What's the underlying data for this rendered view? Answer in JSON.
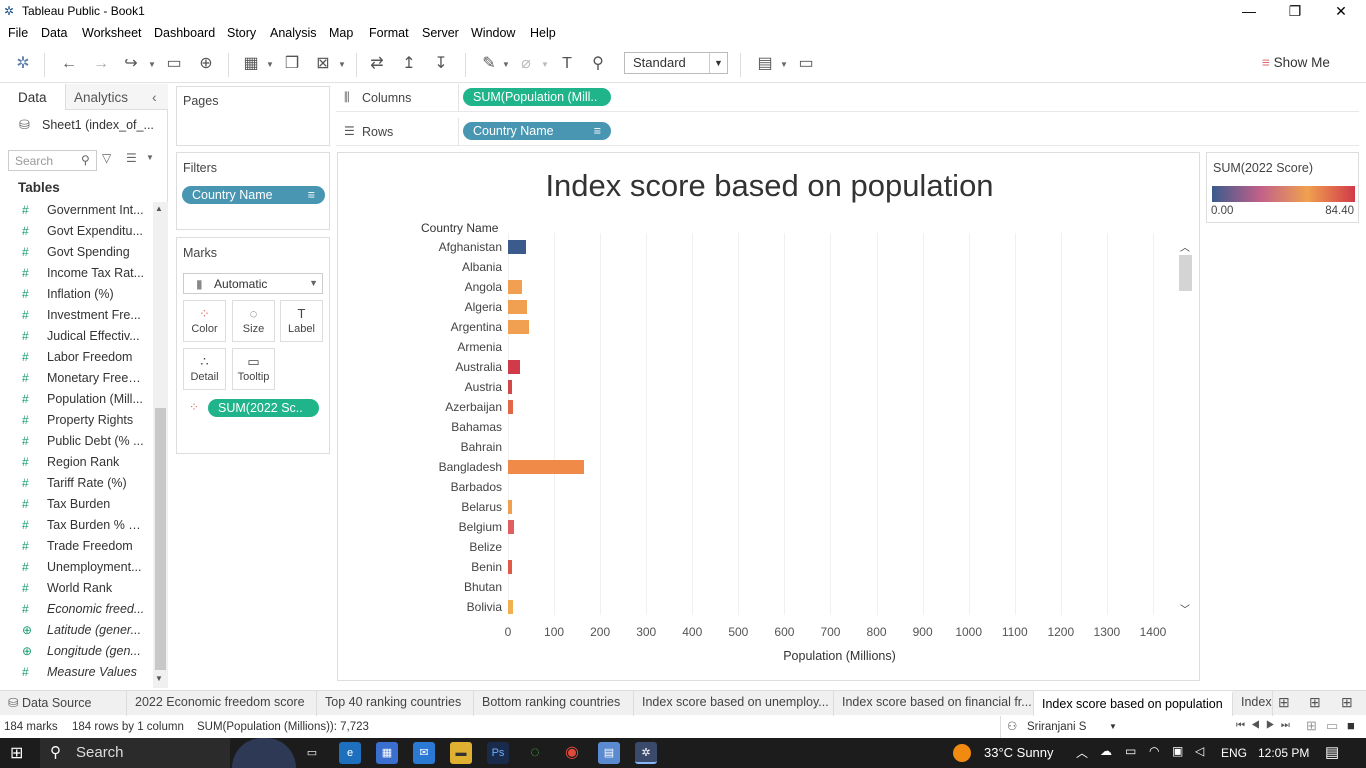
{
  "window": {
    "title": "Tableau Public - Book1"
  },
  "menu": [
    "File",
    "Data",
    "Worksheet",
    "Dashboard",
    "Story",
    "Analysis",
    "Map",
    "Format",
    "Server",
    "Window",
    "Help"
  ],
  "toolbar": {
    "fit": "Standard",
    "show_me": "Show Me"
  },
  "left": {
    "tabs": [
      "Data",
      "Analytics"
    ],
    "datasource": "Sheet1 (index_of_...",
    "search_placeholder": "Search",
    "tables_label": "Tables",
    "fields": [
      {
        "name": "Government Int...",
        "icon": "#"
      },
      {
        "name": "Govt Expenditu...",
        "icon": "#"
      },
      {
        "name": "Govt Spending",
        "icon": "#"
      },
      {
        "name": "Income Tax Rat...",
        "icon": "#"
      },
      {
        "name": "Inflation (%)",
        "icon": "#"
      },
      {
        "name": "Investment Fre...",
        "icon": "#"
      },
      {
        "name": "Judical Effectiv...",
        "icon": "#"
      },
      {
        "name": "Labor Freedom",
        "icon": "#"
      },
      {
        "name": "Monetary Freed...",
        "icon": "#"
      },
      {
        "name": "Population (Mill...",
        "icon": "#"
      },
      {
        "name": "Property Rights",
        "icon": "#"
      },
      {
        "name": "Public Debt (% ...",
        "icon": "#"
      },
      {
        "name": "Region Rank",
        "icon": "#"
      },
      {
        "name": "Tariff Rate (%)",
        "icon": "#"
      },
      {
        "name": "Tax Burden",
        "icon": "#"
      },
      {
        "name": "Tax Burden % o...",
        "icon": "#"
      },
      {
        "name": "Trade Freedom",
        "icon": "#"
      },
      {
        "name": "Unemployment...",
        "icon": "#"
      },
      {
        "name": "World Rank",
        "icon": "#"
      },
      {
        "name": "Economic freed...",
        "icon": "#",
        "italic": true
      },
      {
        "name": "Latitude (gener...",
        "icon": "globe",
        "italic": true
      },
      {
        "name": "Longitude (gen...",
        "icon": "globe",
        "italic": true
      },
      {
        "name": "Measure Values",
        "icon": "#",
        "italic": true
      }
    ]
  },
  "shelves": {
    "pages": "Pages",
    "filters": "Filters",
    "filter_pill": "Country Name",
    "marks": "Marks",
    "mark_type": "Automatic",
    "mark_buttons": [
      "Color",
      "Size",
      "Label",
      "Detail",
      "Tooltip"
    ],
    "marks_pill": "SUM(2022 Sc..",
    "columns_label": "Columns",
    "columns_pill": "SUM(Population (Mill..",
    "rows_label": "Rows",
    "rows_pill": "Country Name"
  },
  "legend": {
    "title": "SUM(2022 Score)",
    "min": "0.00",
    "max": "84.40",
    "colors": [
      "#3b5b8c",
      "#c0608a",
      "#f0a050",
      "#d13a48"
    ]
  },
  "chart_data": {
    "type": "bar",
    "title": "Index score based on population",
    "row_header": "Country Name",
    "xlabel": "Population (Millions)",
    "xlim": [
      0,
      1450
    ],
    "xticks": [
      0,
      100,
      200,
      300,
      400,
      500,
      600,
      700,
      800,
      900,
      1000,
      1100,
      1200,
      1300,
      1400
    ],
    "categories": [
      "Afghanistan",
      "Albania",
      "Angola",
      "Algeria",
      "Argentina",
      "Armenia",
      "Australia",
      "Austria",
      "Azerbaijan",
      "Bahamas",
      "Bahrain",
      "Bangladesh",
      "Barbados",
      "Belarus",
      "Belgium",
      "Belize",
      "Benin",
      "Bhutan",
      "Bolivia"
    ],
    "values": [
      38,
      0,
      30,
      42,
      45,
      0,
      25,
      8,
      10,
      0,
      0,
      165,
      0,
      8,
      12,
      0,
      8,
      0,
      10
    ],
    "colors": [
      "#3b5b8c",
      "#ffffff",
      "#f0a050",
      "#f0a050",
      "#f0a050",
      "#ffffff",
      "#d13a48",
      "#d14a48",
      "#e06848",
      "#ffffff",
      "#ffffff",
      "#ef8a48",
      "#ffffff",
      "#f0a050",
      "#e06060",
      "#ffffff",
      "#e05a48",
      "#ffffff",
      "#f0b050"
    ]
  },
  "sheet_tabs": [
    "Data Source",
    "2022 Economic freedom score",
    "Top 40 ranking countries",
    "Bottom ranking countries",
    "Index score based on unemploy...",
    "Index score based on financial fr...",
    "Index score based on population",
    "Index"
  ],
  "active_tab": 6,
  "info": {
    "marks": "184 marks",
    "rows": "184 rows by 1 column",
    "sum": "SUM(Population (Millions)): 7,723",
    "user": "Sriranjani S"
  },
  "taskbar": {
    "search": "Search",
    "weather": "33°C  Sunny",
    "lang": "ENG",
    "time": "12:05 PM"
  }
}
